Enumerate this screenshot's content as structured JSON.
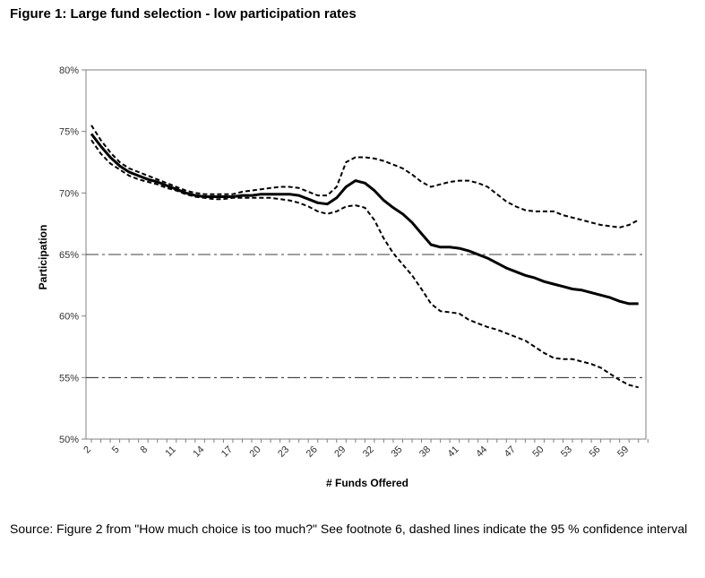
{
  "figure_title": "Figure 1: Large fund selection - low participation rates",
  "source_note": "Source: Figure 2 from \"How much choice is too much?\" See footnote 6, dashed lines indicate the 95 % confidence interval",
  "chart_data": {
    "type": "line",
    "title": "",
    "xlabel": "# Funds Offered",
    "ylabel": "Participation",
    "xlim": [
      2,
      61
    ],
    "ylim": [
      50,
      80
    ],
    "y_ticks": [
      50,
      55,
      60,
      65,
      70,
      75,
      80
    ],
    "y_tick_labels": [
      "50%",
      "55%",
      "60%",
      "65%",
      "70%",
      "75%",
      "80%"
    ],
    "x_ticks": [
      2,
      5,
      8,
      11,
      14,
      17,
      20,
      23,
      26,
      29,
      32,
      35,
      38,
      41,
      44,
      47,
      50,
      53,
      56,
      59
    ],
    "x_tick_labels": [
      "2",
      "5",
      "8",
      "11",
      "14",
      "17",
      "20",
      "23",
      "26",
      "29",
      "32",
      "35",
      "38",
      "41",
      "44",
      "47",
      "50",
      "53",
      "56",
      "59"
    ],
    "reference_lines": [
      65,
      55
    ],
    "series": [
      {
        "name": "Participation",
        "style": "solid",
        "x": [
          2,
          3,
          4,
          5,
          6,
          7,
          8,
          9,
          10,
          11,
          12,
          13,
          14,
          15,
          16,
          17,
          18,
          19,
          20,
          21,
          22,
          23,
          24,
          25,
          26,
          27,
          28,
          29,
          30,
          31,
          32,
          33,
          34,
          35,
          36,
          37,
          38,
          39,
          40,
          41,
          42,
          43,
          44,
          45,
          46,
          47,
          48,
          49,
          50,
          51,
          52,
          53,
          54,
          55,
          56,
          57,
          58,
          59,
          60
        ],
        "values": [
          74.8,
          73.8,
          72.9,
          72.2,
          71.7,
          71.4,
          71.1,
          70.9,
          70.6,
          70.3,
          70.0,
          69.8,
          69.7,
          69.7,
          69.7,
          69.7,
          69.8,
          69.8,
          69.9,
          69.9,
          69.9,
          69.9,
          69.8,
          69.5,
          69.2,
          69.1,
          69.6,
          70.5,
          71.0,
          70.8,
          70.2,
          69.4,
          68.8,
          68.3,
          67.6,
          66.7,
          65.8,
          65.6,
          65.6,
          65.5,
          65.3,
          65.0,
          64.7,
          64.3,
          63.9,
          63.6,
          63.3,
          63.1,
          62.8,
          62.6,
          62.4,
          62.2,
          62.1,
          61.9,
          61.7,
          61.5,
          61.2,
          61.0,
          61.0
        ]
      },
      {
        "name": "Upper 95% confidence bound",
        "style": "dashed",
        "x": [
          2,
          3,
          4,
          5,
          6,
          7,
          8,
          9,
          10,
          11,
          12,
          13,
          14,
          15,
          16,
          17,
          18,
          19,
          20,
          21,
          22,
          23,
          24,
          25,
          26,
          27,
          28,
          29,
          30,
          31,
          32,
          33,
          34,
          35,
          36,
          37,
          38,
          39,
          40,
          41,
          42,
          43,
          44,
          45,
          46,
          47,
          48,
          49,
          50,
          51,
          52,
          53,
          54,
          55,
          56,
          57,
          58,
          59,
          60
        ],
        "values": [
          75.5,
          74.3,
          73.3,
          72.5,
          72.0,
          71.7,
          71.4,
          71.1,
          70.8,
          70.5,
          70.2,
          70.0,
          69.9,
          69.9,
          69.9,
          69.9,
          70.1,
          70.2,
          70.3,
          70.4,
          70.5,
          70.5,
          70.4,
          70.1,
          69.8,
          69.8,
          70.5,
          72.5,
          72.9,
          72.9,
          72.8,
          72.6,
          72.3,
          72.0,
          71.5,
          70.9,
          70.5,
          70.7,
          70.9,
          71.0,
          71.0,
          70.8,
          70.5,
          69.9,
          69.3,
          68.9,
          68.6,
          68.5,
          68.5,
          68.5,
          68.2,
          68.0,
          67.8,
          67.6,
          67.4,
          67.3,
          67.2,
          67.4,
          67.8
        ]
      },
      {
        "name": "Lower 95% confidence bound",
        "style": "dashed",
        "x": [
          2,
          3,
          4,
          5,
          6,
          7,
          8,
          9,
          10,
          11,
          12,
          13,
          14,
          15,
          16,
          17,
          18,
          19,
          20,
          21,
          22,
          23,
          24,
          25,
          26,
          27,
          28,
          29,
          30,
          31,
          32,
          33,
          34,
          35,
          36,
          37,
          38,
          39,
          40,
          41,
          42,
          43,
          44,
          45,
          46,
          47,
          48,
          49,
          50,
          51,
          52,
          53,
          54,
          55,
          56,
          57,
          58,
          59,
          60
        ],
        "values": [
          74.3,
          73.2,
          72.4,
          71.9,
          71.4,
          71.1,
          70.9,
          70.7,
          70.4,
          70.2,
          69.9,
          69.7,
          69.6,
          69.5,
          69.5,
          69.6,
          69.6,
          69.6,
          69.6,
          69.6,
          69.5,
          69.4,
          69.2,
          68.9,
          68.5,
          68.3,
          68.5,
          68.9,
          69.0,
          68.8,
          67.8,
          66.3,
          65.1,
          64.2,
          63.3,
          62.2,
          61.0,
          60.4,
          60.3,
          60.2,
          59.7,
          59.4,
          59.1,
          58.9,
          58.6,
          58.3,
          58.0,
          57.5,
          57.0,
          56.6,
          56.5,
          56.5,
          56.3,
          56.1,
          55.8,
          55.3,
          54.8,
          54.4,
          54.2
        ]
      }
    ]
  }
}
